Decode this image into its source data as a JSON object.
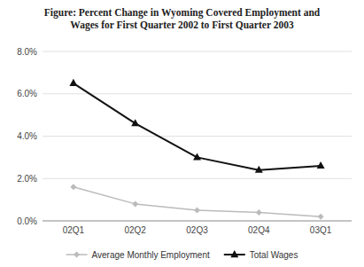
{
  "chart_data": {
    "type": "line",
    "title": "Figure: Percent Change in Wyoming Covered Employment and\nWages for First Quarter 2002 to First Quarter 2003",
    "categories": [
      "02Q1",
      "02Q2",
      "02Q3",
      "02Q4",
      "03Q1"
    ],
    "series": [
      {
        "name": "Average Monthly Employment",
        "color": "#bbbbbb",
        "marker": "diamond",
        "values": [
          0.016,
          0.008,
          0.005,
          0.004,
          0.002
        ]
      },
      {
        "name": "Total Wages",
        "color": "#111111",
        "marker": "triangle",
        "values": [
          0.065,
          0.046,
          0.03,
          0.024,
          0.026
        ]
      }
    ],
    "ylim": [
      0.0,
      0.08
    ],
    "yticks": [
      {
        "value": 0.0,
        "label": "0.0%"
      },
      {
        "value": 0.02,
        "label": "2.0%"
      },
      {
        "value": 0.04,
        "label": "4.0%"
      },
      {
        "value": 0.06,
        "label": "6.0%"
      },
      {
        "value": 0.08,
        "label": "8.0%"
      }
    ],
    "grid": true,
    "legend": "bottom"
  }
}
